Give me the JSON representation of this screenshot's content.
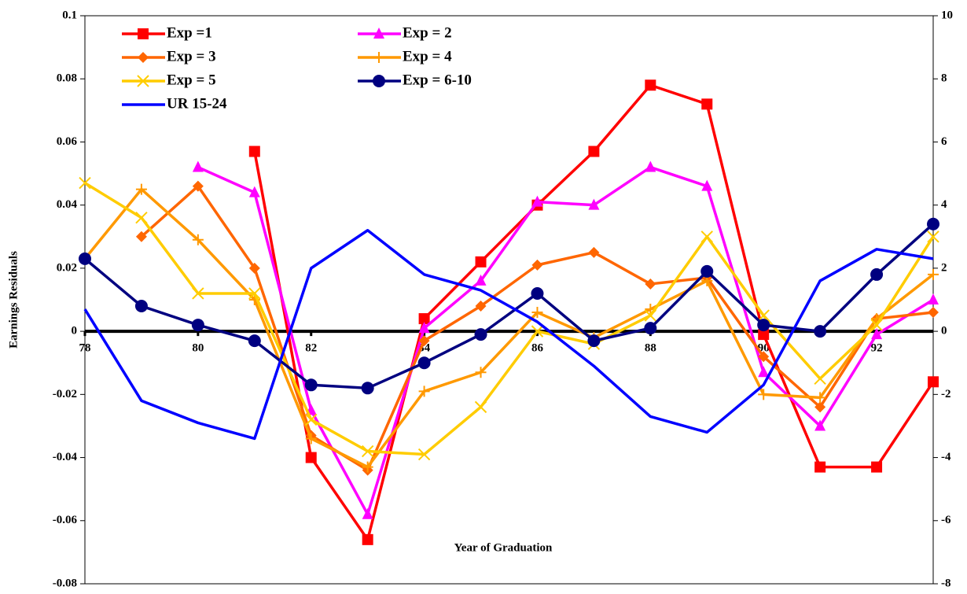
{
  "chart_data": {
    "type": "line",
    "xlabel": "Year of Graduation",
    "ylabel": "Earnings Residuals",
    "x": [
      78,
      79,
      80,
      81,
      82,
      83,
      84,
      85,
      86,
      87,
      88,
      89,
      90,
      91,
      92,
      93
    ],
    "xlim": [
      78,
      93
    ],
    "xticks": [
      78,
      80,
      82,
      84,
      86,
      88,
      90,
      92
    ],
    "ylim": [
      -0.08,
      0.1
    ],
    "yticks": [
      -0.08,
      -0.06,
      -0.04,
      -0.02,
      0,
      0.02,
      0.04,
      0.06,
      0.08,
      0.1
    ],
    "y2lim": [
      -8,
      10
    ],
    "y2ticks": [
      -8,
      -6,
      -4,
      -2,
      0,
      2,
      4,
      6,
      8,
      10
    ],
    "legend": "upper left",
    "series": [
      {
        "name": "Exp =1",
        "color": "#ff0000",
        "marker": "square",
        "values": [
          null,
          null,
          null,
          0.057,
          -0.04,
          -0.066,
          0.004,
          0.022,
          0.04,
          0.057,
          0.078,
          0.072,
          -0.001,
          -0.043,
          -0.043,
          -0.016
        ]
      },
      {
        "name": "Exp = 2",
        "color": "#ff00ff",
        "marker": "triangle",
        "values": [
          null,
          null,
          0.052,
          0.044,
          -0.025,
          -0.058,
          0.001,
          0.016,
          0.041,
          0.04,
          0.052,
          0.046,
          -0.013,
          -0.03,
          -0.001,
          0.01
        ]
      },
      {
        "name": "Exp = 3",
        "color": "#ff6600",
        "marker": "diamond",
        "values": [
          null,
          0.03,
          0.046,
          0.02,
          -0.033,
          -0.044,
          -0.003,
          0.008,
          0.021,
          0.025,
          0.015,
          0.017,
          -0.008,
          -0.024,
          0.004,
          0.006
        ]
      },
      {
        "name": "Exp = 4",
        "color": "#ff9900",
        "marker": "plus",
        "values": [
          0.023,
          0.045,
          0.029,
          0.01,
          -0.034,
          -0.043,
          -0.019,
          -0.013,
          0.006,
          -0.002,
          0.007,
          0.016,
          -0.02,
          -0.021,
          0.004,
          0.018
        ]
      },
      {
        "name": "Exp = 5",
        "color": "#ffcc00",
        "marker": "x",
        "values": [
          0.047,
          0.036,
          0.012,
          0.012,
          -0.028,
          -0.038,
          -0.039,
          -0.024,
          0.0,
          -0.004,
          0.005,
          0.03,
          0.005,
          -0.015,
          0.002,
          0.03
        ]
      },
      {
        "name": "Exp = 6-10",
        "color": "#000080",
        "marker": "circle",
        "values": [
          0.023,
          0.008,
          0.002,
          -0.003,
          -0.017,
          -0.018,
          -0.01,
          -0.001,
          0.012,
          -0.003,
          0.001,
          0.019,
          0.002,
          0.0,
          0.018,
          0.034
        ]
      },
      {
        "name": "UR 15-24",
        "color": "#0000ff",
        "marker": "none",
        "axis": "y2",
        "values": [
          0.7,
          -2.2,
          -2.9,
          -3.4,
          2.0,
          3.2,
          1.8,
          1.3,
          0.3,
          -1.1,
          -2.7,
          -3.2,
          -1.7,
          1.6,
          2.6,
          2.3
        ]
      }
    ]
  }
}
